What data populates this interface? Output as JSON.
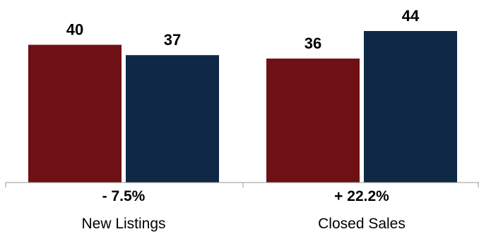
{
  "chart_data": {
    "type": "bar",
    "categories": [
      "New Listings",
      "Closed Sales"
    ],
    "changes": [
      "- 7.5%",
      "+ 22.2%"
    ],
    "series": [
      {
        "values": [
          40,
          36
        ],
        "color": "#6e1014"
      },
      {
        "values": [
          37,
          44
        ],
        "color": "#0f2846"
      }
    ],
    "ylim": [
      0,
      44
    ],
    "grid": false,
    "axis_color": "#999999"
  }
}
